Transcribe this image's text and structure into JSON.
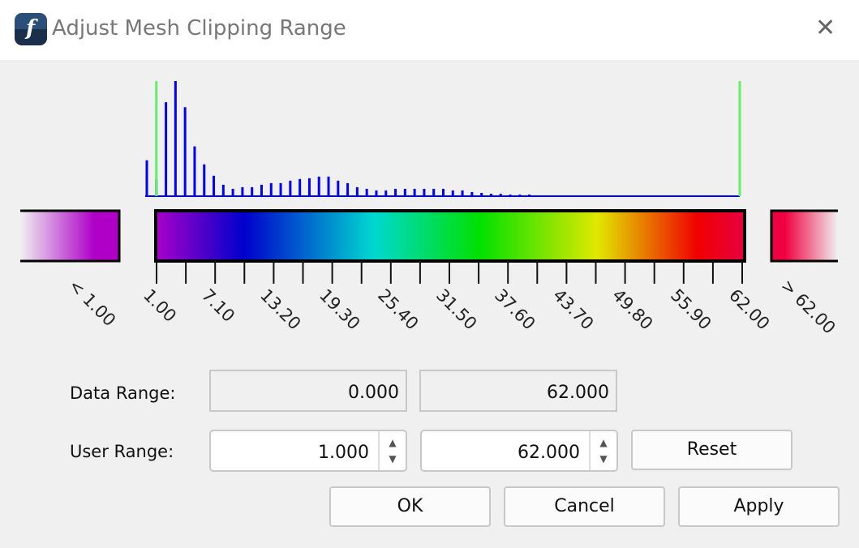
{
  "window": {
    "title": "Adjust Mesh Clipping Range",
    "icon": "app-logo-icon",
    "close": "✕"
  },
  "histogram": {
    "data_min": 0,
    "data_max": 62,
    "bin_counts": [
      44,
      21,
      115,
      141,
      109,
      61,
      39,
      25,
      14,
      9,
      11,
      11,
      14,
      16,
      16,
      19,
      21,
      22,
      24,
      24,
      19,
      16,
      11,
      9,
      7,
      7,
      9,
      9,
      9,
      9,
      9,
      9,
      7,
      7,
      5,
      4,
      3,
      3,
      2,
      2,
      2,
      1,
      1,
      0,
      0,
      0,
      0,
      0,
      0,
      0,
      0,
      0,
      0,
      0,
      0,
      0,
      0,
      0,
      0,
      0,
      0,
      0
    ],
    "bar_color": "#0000ff",
    "marker_color": "#66ee66",
    "user_min": 1,
    "user_max": 62
  },
  "colorbar": {
    "below_label": "< 1.00",
    "above_label": "> 62.00",
    "tick_labels": [
      "1.00",
      "7.10",
      "13.20",
      "19.30",
      "25.40",
      "31.50",
      "37.60",
      "43.70",
      "49.80",
      "55.90",
      "62.00"
    ],
    "colors": [
      "#a800c8",
      "#0000cc",
      "#00d8d0",
      "#00e000",
      "#e0e800",
      "#f00000",
      "#e80040"
    ]
  },
  "form": {
    "data_range_label": "Data Range:",
    "data_min": "0.000",
    "data_max": "62.000",
    "user_range_label": "User Range:",
    "user_min": "1.000",
    "user_max": "62.000",
    "reset": "Reset",
    "ok": "OK",
    "cancel": "Cancel",
    "apply": "Apply"
  }
}
